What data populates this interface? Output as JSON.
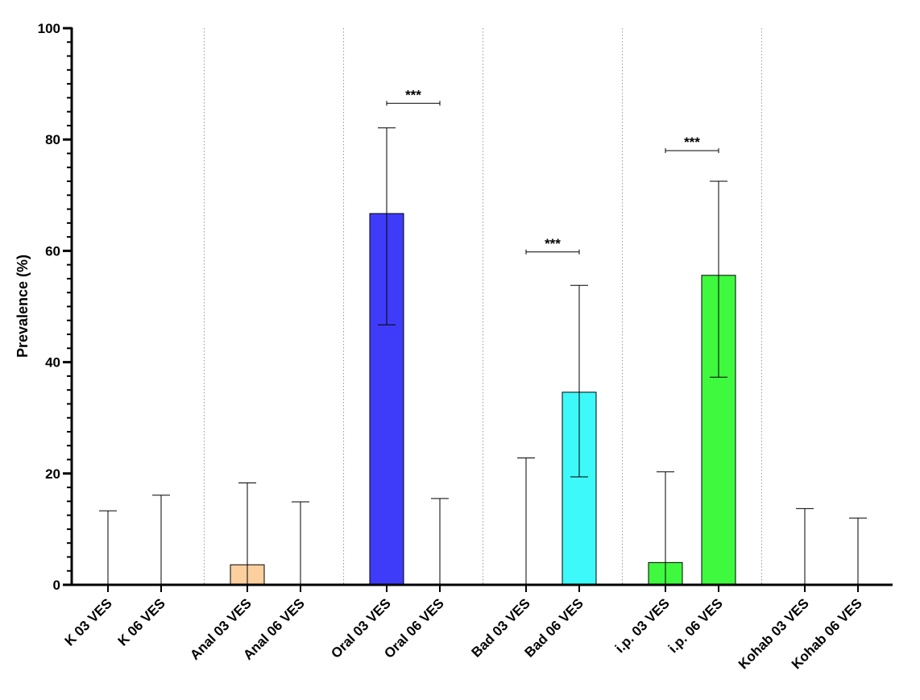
{
  "chart_data": {
    "type": "bar",
    "title": "",
    "xlabel": "",
    "ylabel": "Prevalence (%)",
    "ylim": [
      0,
      100
    ],
    "yticks": [
      0,
      20,
      40,
      60,
      80,
      100
    ],
    "ytick_labels": [
      "0",
      "20",
      "40",
      "60",
      "80",
      "100"
    ],
    "grid": false,
    "group_separators": "dotted vertical lines between groups",
    "categories": [
      "K 03 VES",
      "K 06 VES",
      "Anal 03 VES",
      "Anal 06 VES",
      "Oral 03 VES",
      "Oral 06 VES",
      "Bad 03 VES",
      "Bad 06 VES",
      "i.p.  03 VES",
      "i.p. 06 VES",
      "Kohab 03 VES",
      "Kohab 06 VES"
    ],
    "values": [
      0,
      0,
      3.6,
      0,
      66.7,
      0,
      0,
      34.6,
      4.0,
      55.6,
      0,
      0
    ],
    "error_lower": [
      0,
      0,
      0,
      0,
      46.7,
      0,
      0,
      19.4,
      0,
      37.3,
      0,
      0
    ],
    "error_upper": [
      13.3,
      16.1,
      18.3,
      14.9,
      82.1,
      15.5,
      22.8,
      53.8,
      20.3,
      72.5,
      13.7,
      12.0
    ],
    "colors": [
      "#ffffff",
      "#ffffff",
      "#fbcf9e",
      "#ffffff",
      "#3f3cf9",
      "#ffffff",
      "#ffffff",
      "#3ef9f9",
      "#3ff93f",
      "#3ff93f",
      "#ffffff",
      "#ffffff"
    ],
    "significance": [
      {
        "from": 4,
        "to": 5,
        "label": "***",
        "y": 86.5
      },
      {
        "from": 6,
        "to": 7,
        "label": "***",
        "y": 59.8
      },
      {
        "from": 8,
        "to": 9,
        "label": "***",
        "y": 78.0
      }
    ]
  }
}
